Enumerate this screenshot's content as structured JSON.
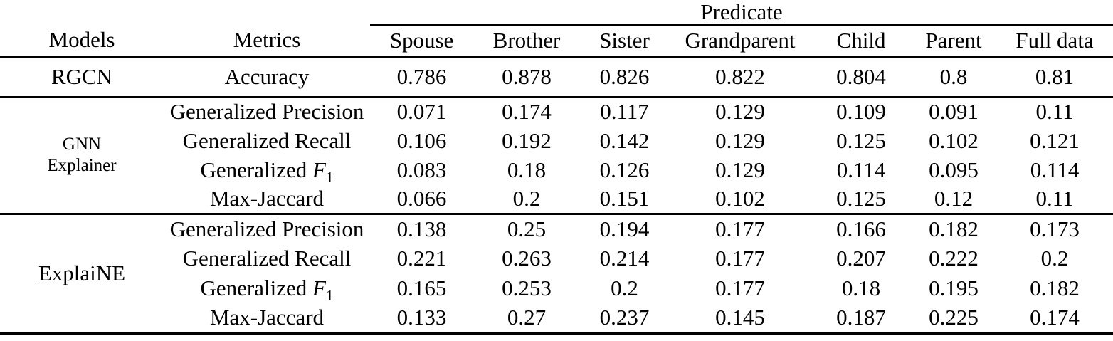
{
  "page": {
    "background_color": "#ffffff",
    "text_color": "#000000"
  },
  "table": {
    "group_header": "Predicate",
    "columns": [
      "Models",
      "Metrics",
      "Spouse",
      "Brother",
      "Sister",
      "Grandparent",
      "Child",
      "Parent",
      "Full data"
    ],
    "groups": [
      {
        "model": "RGCN",
        "model_lines": [
          "RGCN"
        ],
        "model_small": false,
        "bold_values": false,
        "rows": [
          {
            "metric": "Accuracy",
            "values": [
              "0.786",
              "0.878",
              "0.826",
              "0.822",
              "0.804",
              "0.8",
              "0.81"
            ]
          }
        ]
      },
      {
        "model": "GNN Explainer",
        "model_lines": [
          "GNN",
          "Explainer"
        ],
        "model_small": true,
        "bold_values": false,
        "rows": [
          {
            "metric": "Generalized Precision",
            "values": [
              "0.071",
              "0.174",
              "0.117",
              "0.129",
              "0.109",
              "0.091",
              "0.11"
            ]
          },
          {
            "metric": "Generalized Recall",
            "values": [
              "0.106",
              "0.192",
              "0.142",
              "0.129",
              "0.125",
              "0.102",
              "0.121"
            ]
          },
          {
            "metric": "Generalized F_1",
            "values": [
              "0.083",
              "0.18",
              "0.126",
              "0.129",
              "0.114",
              "0.095",
              "0.114"
            ]
          },
          {
            "metric": "Max-Jaccard",
            "values": [
              "0.066",
              "0.2",
              "0.151",
              "0.102",
              "0.125",
              "0.12",
              "0.11"
            ]
          }
        ]
      },
      {
        "model": "ExplaiNE",
        "model_lines": [
          "ExplaiNE"
        ],
        "model_small": false,
        "bold_values": true,
        "rows": [
          {
            "metric": "Generalized Precision",
            "values": [
              "0.138",
              "0.25",
              "0.194",
              "0.177",
              "0.166",
              "0.182",
              "0.173"
            ]
          },
          {
            "metric": "Generalized Recall",
            "values": [
              "0.221",
              "0.263",
              "0.214",
              "0.177",
              "0.207",
              "0.222",
              "0.2"
            ]
          },
          {
            "metric": "Generalized F_1",
            "values": [
              "0.165",
              "0.253",
              "0.2",
              "0.177",
              "0.18",
              "0.195",
              "0.182"
            ]
          },
          {
            "metric": "Max-Jaccard",
            "values": [
              "0.133",
              "0.27",
              "0.237",
              "0.145",
              "0.187",
              "0.225",
              "0.174"
            ]
          }
        ]
      }
    ]
  }
}
